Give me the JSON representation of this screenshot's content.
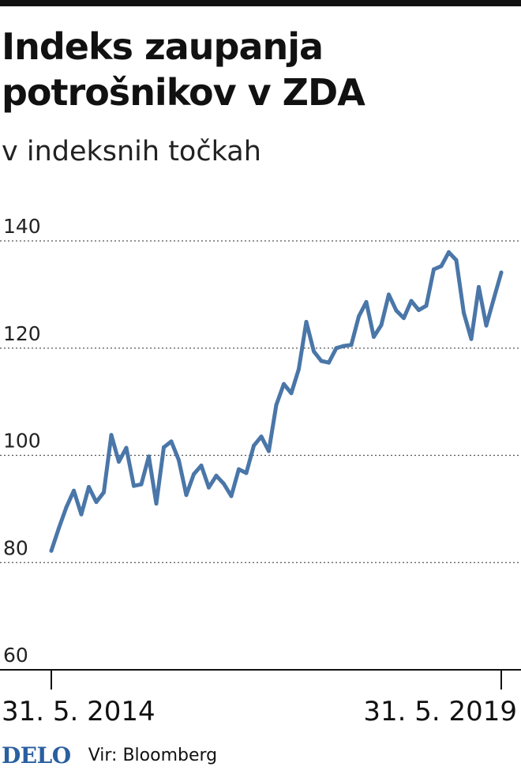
{
  "title": "Indeks zaupanja potrošnikov v ZDA",
  "subtitle": "v indeksnih točkah",
  "footer": {
    "logo": "DELO",
    "source": "Vir: Bloomberg"
  },
  "colors": {
    "line": "#4a76a8",
    "logo": "#2a5fa0"
  },
  "chart_data": {
    "type": "line",
    "title": "Indeks zaupanja potrošnikov v ZDA",
    "subtitle": "v indeksnih točkah",
    "ylim": [
      60,
      140
    ],
    "yticks": [
      "140",
      "120",
      "100",
      "80",
      "60"
    ],
    "grid": true,
    "x_start_label": "31. 5. 2014",
    "x_end_label": "31. 5. 2019",
    "x": [
      "2014-05",
      "2014-06",
      "2014-07",
      "2014-08",
      "2014-09",
      "2014-10",
      "2014-11",
      "2014-12",
      "2015-01",
      "2015-02",
      "2015-03",
      "2015-04",
      "2015-05",
      "2015-06",
      "2015-07",
      "2015-08",
      "2015-09",
      "2015-10",
      "2015-11",
      "2015-12",
      "2016-01",
      "2016-02",
      "2016-03",
      "2016-04",
      "2016-05",
      "2016-06",
      "2016-07",
      "2016-08",
      "2016-09",
      "2016-10",
      "2016-11",
      "2016-12",
      "2017-01",
      "2017-02",
      "2017-03",
      "2017-04",
      "2017-05",
      "2017-06",
      "2017-07",
      "2017-08",
      "2017-09",
      "2017-10",
      "2017-11",
      "2017-12",
      "2018-01",
      "2018-02",
      "2018-03",
      "2018-04",
      "2018-05",
      "2018-06",
      "2018-07",
      "2018-08",
      "2018-09",
      "2018-10",
      "2018-11",
      "2018-12",
      "2019-01",
      "2019-02",
      "2019-03",
      "2019-04",
      "2019-05"
    ],
    "series": [
      {
        "values": [
          82.2,
          86.4,
          90.3,
          93.4,
          89.0,
          94.1,
          91.3,
          93.1,
          103.8,
          98.8,
          101.4,
          94.3,
          94.6,
          99.8,
          91.0,
          101.5,
          102.6,
          99.1,
          92.6,
          96.5,
          98.1,
          94.0,
          96.2,
          94.7,
          92.4,
          97.4,
          96.7,
          101.8,
          103.5,
          100.8,
          109.4,
          113.3,
          111.6,
          116.1,
          124.9,
          119.4,
          117.6,
          117.3,
          120.0,
          120.4,
          120.6,
          125.9,
          128.6,
          122.1,
          124.3,
          130.0,
          127.0,
          125.6,
          128.8,
          127.1,
          127.9,
          134.7,
          135.3,
          137.9,
          136.4,
          126.6,
          121.7,
          131.4,
          124.2,
          129.2,
          134.1
        ]
      }
    ]
  }
}
